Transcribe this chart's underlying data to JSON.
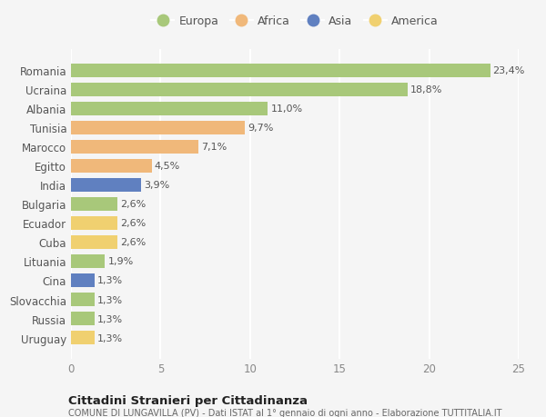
{
  "countries": [
    "Romania",
    "Ucraina",
    "Albania",
    "Tunisia",
    "Marocco",
    "Egitto",
    "India",
    "Bulgaria",
    "Ecuador",
    "Cuba",
    "Lituania",
    "Cina",
    "Slovacchia",
    "Russia",
    "Uruguay"
  ],
  "values": [
    23.4,
    18.8,
    11.0,
    9.7,
    7.1,
    4.5,
    3.9,
    2.6,
    2.6,
    2.6,
    1.9,
    1.3,
    1.3,
    1.3,
    1.3
  ],
  "labels": [
    "23,4%",
    "18,8%",
    "11,0%",
    "9,7%",
    "7,1%",
    "4,5%",
    "3,9%",
    "2,6%",
    "2,6%",
    "2,6%",
    "1,9%",
    "1,3%",
    "1,3%",
    "1,3%",
    "1,3%"
  ],
  "continents": [
    "Europa",
    "Europa",
    "Europa",
    "Africa",
    "Africa",
    "Africa",
    "Asia",
    "Europa",
    "America",
    "America",
    "Europa",
    "Asia",
    "Europa",
    "Europa",
    "America"
  ],
  "colors": {
    "Europa": "#a8c87a",
    "Africa": "#f0b87a",
    "Asia": "#6080c0",
    "America": "#f0d070"
  },
  "xlim": [
    0,
    25
  ],
  "xticks": [
    0,
    5,
    10,
    15,
    20,
    25
  ],
  "title": "Cittadini Stranieri per Cittadinanza",
  "subtitle": "COMUNE DI LUNGAVILLA (PV) - Dati ISTAT al 1° gennaio di ogni anno - Elaborazione TUTTITALIA.IT",
  "background_color": "#f5f5f5",
  "grid_color": "#ffffff",
  "bar_height": 0.72,
  "label_fontsize": 8,
  "ytick_fontsize": 8.5,
  "xtick_fontsize": 8.5
}
